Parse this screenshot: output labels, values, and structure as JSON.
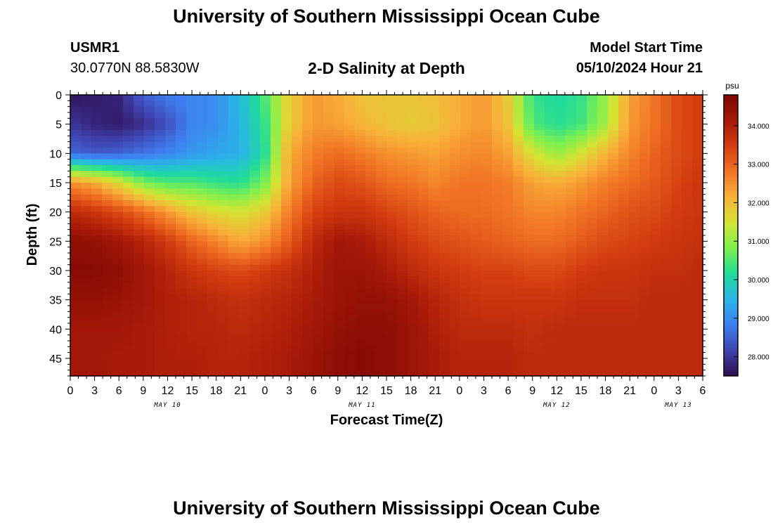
{
  "header": {
    "title": "University of Southern Mississippi Ocean Cube",
    "station_id": "USMR1",
    "station_coords": "30.0770N  88.5830W",
    "subtitle": "2-D Salinity at Depth",
    "model_start_label": "Model Start Time",
    "model_start_value": "05/10/2024 Hour 21"
  },
  "footer": {
    "title": "University of Southern Mississippi Ocean Cube"
  },
  "chart_data": {
    "type": "heatmap",
    "title": "2-D Salinity at Depth",
    "xlabel": "Forecast Time(Z)",
    "ylabel": "Depth (ft)",
    "x_hours": [
      0,
      3,
      6,
      9,
      12,
      15,
      18,
      21,
      24,
      27,
      30,
      33,
      36,
      39,
      42,
      45,
      48,
      51,
      54,
      57,
      60,
      63,
      66,
      69,
      72,
      75,
      78
    ],
    "x_tick_labels": [
      "0",
      "3",
      "6",
      "9",
      "12",
      "15",
      "18",
      "21",
      "0",
      "3",
      "6",
      "9",
      "12",
      "15",
      "18",
      "21",
      "0",
      "3",
      "6",
      "9",
      "12",
      "15",
      "18",
      "21",
      "0",
      "3",
      "6"
    ],
    "day_labels": [
      {
        "hour": 12,
        "label": "MAY 10"
      },
      {
        "hour": 36,
        "label": "MAY 11"
      },
      {
        "hour": 60,
        "label": "MAY 12"
      },
      {
        "hour": 75,
        "label": "MAY 13"
      }
    ],
    "xlim": [
      0,
      78
    ],
    "depths_ft": [
      0,
      5,
      10,
      15,
      20,
      25,
      30,
      35,
      40,
      45,
      48
    ],
    "y_ticks": [
      0,
      5,
      10,
      15,
      20,
      25,
      30,
      35,
      40,
      45
    ],
    "ylim": [
      0,
      48
    ],
    "y_inverted": true,
    "values_psu": [
      [
        27.6,
        27.7,
        27.8,
        28.5,
        28.8,
        28.9,
        29.0,
        29.6,
        30.5,
        31.8,
        32.4,
        32.2,
        31.9,
        31.9,
        31.9,
        32.0,
        32.2,
        32.4,
        31.8,
        30.3,
        30.1,
        30.3,
        31.0,
        32.3,
        32.8,
        33.3,
        33.5
      ],
      [
        28.0,
        27.8,
        27.7,
        27.9,
        28.3,
        28.9,
        29.0,
        29.5,
        30.3,
        31.8,
        32.4,
        32.3,
        32.1,
        31.9,
        31.8,
        31.9,
        32.2,
        32.4,
        31.9,
        30.5,
        30.2,
        30.4,
        31.1,
        32.4,
        32.8,
        33.3,
        33.5
      ],
      [
        28.6,
        28.4,
        28.5,
        28.7,
        28.9,
        29.1,
        29.3,
        29.4,
        30.2,
        32.2,
        32.7,
        32.9,
        32.7,
        32.5,
        32.4,
        32.3,
        32.5,
        32.6,
        32.3,
        31.5,
        31.0,
        31.5,
        32.1,
        32.6,
        33.0,
        33.3,
        33.5
      ],
      [
        32.5,
        32.2,
        31.6,
        30.8,
        30.5,
        30.5,
        30.3,
        30.2,
        30.8,
        32.3,
        33.0,
        33.3,
        33.2,
        32.9,
        32.8,
        32.6,
        32.8,
        32.8,
        32.7,
        32.3,
        32.2,
        32.4,
        32.7,
        32.9,
        33.1,
        33.4,
        33.6
      ],
      [
        33.8,
        33.6,
        33.3,
        32.9,
        32.4,
        31.9,
        31.6,
        31.5,
        31.8,
        32.7,
        33.4,
        33.6,
        33.6,
        33.4,
        33.2,
        33.0,
        32.9,
        32.9,
        32.8,
        32.6,
        32.6,
        32.8,
        33.0,
        33.2,
        33.3,
        33.5,
        33.6
      ],
      [
        34.5,
        34.4,
        34.2,
        33.9,
        33.5,
        33.0,
        32.6,
        32.2,
        32.5,
        33.1,
        33.8,
        34.2,
        34.1,
        33.8,
        33.5,
        33.3,
        33.2,
        33.1,
        33.0,
        32.9,
        32.9,
        33.1,
        33.3,
        33.4,
        33.5,
        33.6,
        33.7
      ],
      [
        34.6,
        34.6,
        34.5,
        34.2,
        33.9,
        33.6,
        33.4,
        33.3,
        33.5,
        33.7,
        34.0,
        34.3,
        34.3,
        34.1,
        33.8,
        33.6,
        33.5,
        33.4,
        33.4,
        33.3,
        33.3,
        33.5,
        33.6,
        33.6,
        33.7,
        33.7,
        33.8
      ],
      [
        34.4,
        34.4,
        34.3,
        34.2,
        34.0,
        33.9,
        33.8,
        33.7,
        33.8,
        33.9,
        34.1,
        34.3,
        34.4,
        34.4,
        34.2,
        33.9,
        33.7,
        33.6,
        33.6,
        33.6,
        33.6,
        33.7,
        33.7,
        33.7,
        33.8,
        33.8,
        33.8
      ],
      [
        34.2,
        34.2,
        34.2,
        34.1,
        34.0,
        33.9,
        33.9,
        33.8,
        33.9,
        34.0,
        34.2,
        34.4,
        34.5,
        34.5,
        34.3,
        34.0,
        33.8,
        33.8,
        33.8,
        33.7,
        33.8,
        33.8,
        33.8,
        33.8,
        33.8,
        33.8,
        33.8
      ],
      [
        34.2,
        34.2,
        34.1,
        34.1,
        34.0,
        34.0,
        33.9,
        33.9,
        34.0,
        34.1,
        34.3,
        34.5,
        34.6,
        34.5,
        34.3,
        34.1,
        33.9,
        33.9,
        33.9,
        33.8,
        33.8,
        33.8,
        33.8,
        33.8,
        33.8,
        33.8,
        33.8
      ],
      [
        34.2,
        34.2,
        34.1,
        34.1,
        34.0,
        34.0,
        33.9,
        33.9,
        34.0,
        34.1,
        34.3,
        34.5,
        34.6,
        34.5,
        34.3,
        34.1,
        33.9,
        33.9,
        33.9,
        33.8,
        33.8,
        33.8,
        33.8,
        33.8,
        33.8,
        33.8,
        33.8
      ]
    ],
    "colorbar": {
      "unit": "psu",
      "range": [
        27.5,
        34.8
      ],
      "tick_values": [
        28.0,
        29.0,
        30.0,
        31.0,
        32.0,
        33.0,
        34.0
      ],
      "tick_labels": [
        "28.000",
        "29.000",
        "30.000",
        "31.000",
        "32.000",
        "33.000",
        "34.000"
      ],
      "colors": [
        "#2d0c4c",
        "#4043b0",
        "#3f7ff0",
        "#2ab6e8",
        "#1fdb9a",
        "#7ef050",
        "#d4e332",
        "#f8b13a",
        "#f17324",
        "#d33c10",
        "#a61908",
        "#7a0603"
      ]
    }
  }
}
